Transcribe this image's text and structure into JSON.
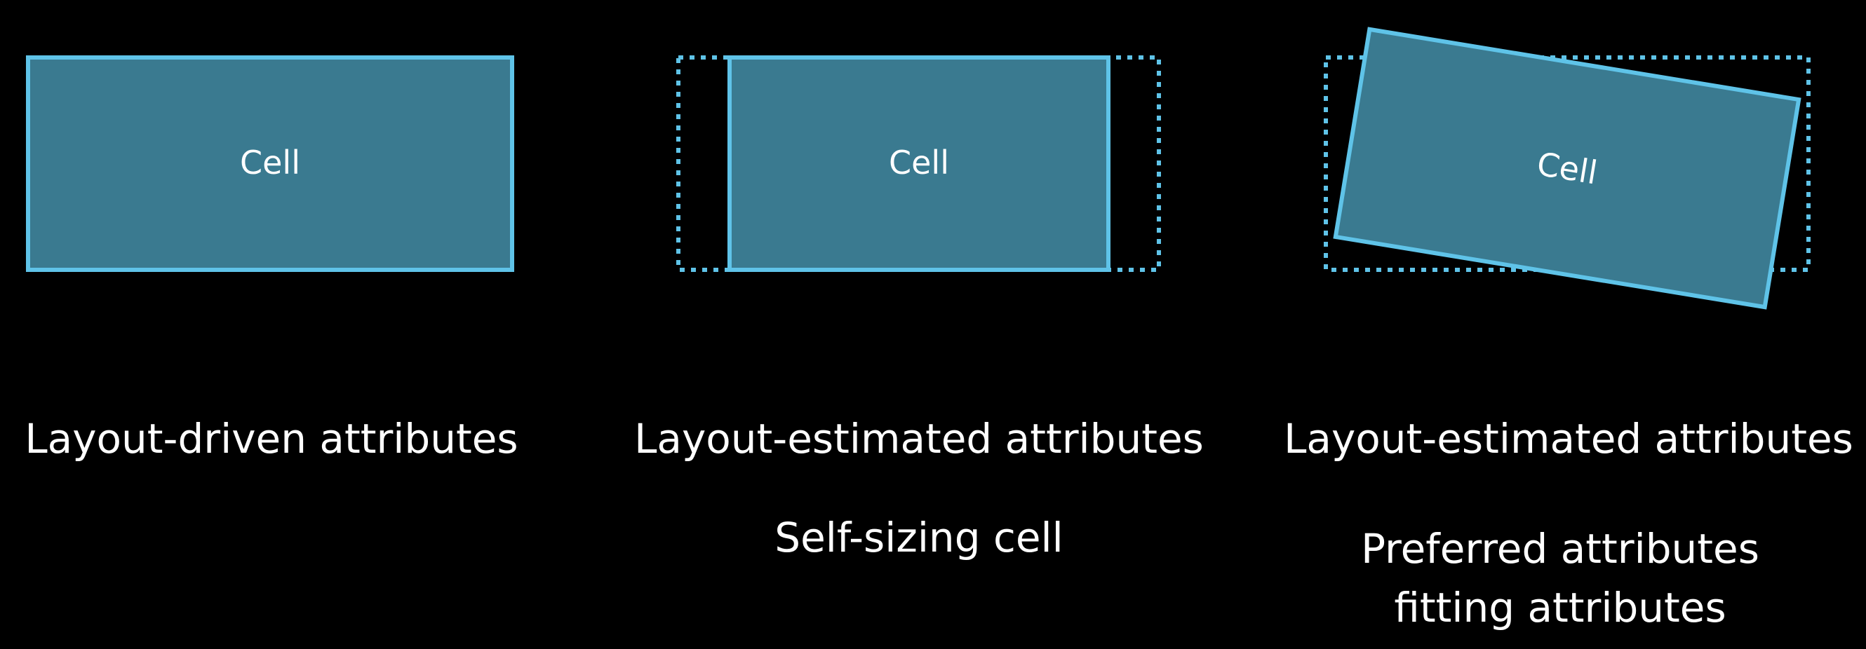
{
  "colors": {
    "background": "#000000",
    "cell_fill": "#3A7A90",
    "cell_border": "#5FC3E8",
    "dotted_border": "#5FC3E8",
    "text": "#FFFFFF"
  },
  "panels": [
    {
      "cell_label": "Cell",
      "attribute_label": "Layout-driven attributes",
      "subtitle_lines": []
    },
    {
      "cell_label": "Cell",
      "attribute_label": "Layout-estimated attributes",
      "subtitle_lines": [
        "Self-sizing cell"
      ]
    },
    {
      "cell_label": "Cell",
      "attribute_label": "Layout-estimated attributes",
      "subtitle_lines": [
        "Preferred attributes",
        "fitting attributes"
      ]
    }
  ]
}
